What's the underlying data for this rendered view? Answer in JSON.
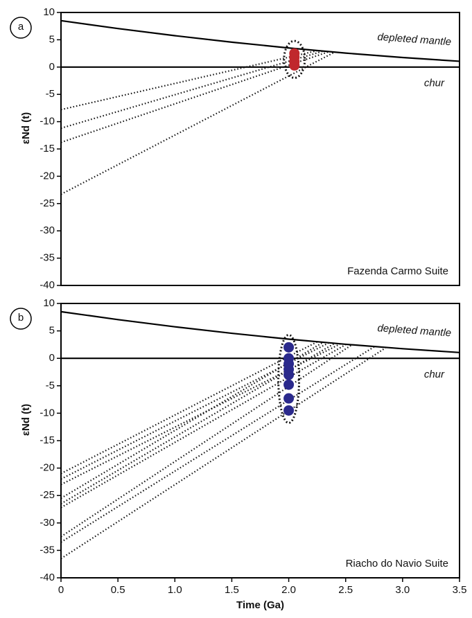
{
  "chart_data": [
    {
      "type": "line",
      "panel_label": "a",
      "y_label": "εNd (t)",
      "annotation": "Fazenda Carmo Suite",
      "xlim": [
        0,
        3.5
      ],
      "ylim": [
        -40,
        10
      ],
      "yticks": [
        10,
        5,
        0,
        -5,
        -10,
        -15,
        -20,
        -25,
        -30,
        -35,
        -40
      ],
      "series": [
        {
          "name": "depleted mantle",
          "color": "#000000",
          "x": [
            0,
            0.5,
            1.0,
            1.5,
            2.0,
            2.5,
            3.0,
            3.5
          ],
          "values": [
            8.5,
            7.06,
            5.75,
            4.56,
            3.5,
            2.56,
            1.75,
            1.06
          ]
        },
        {
          "name": "chur",
          "color": "#000000",
          "x": [
            0,
            3.5
          ],
          "values": [
            0,
            0
          ]
        }
      ],
      "samples": {
        "color": "#c0282d",
        "x": [
          2.05,
          2.05,
          2.05,
          2.05
        ],
        "values": [
          2.5,
          1.8,
          1.0,
          0.3
        ]
      },
      "model_lines": [
        {
          "x": [
            0,
            2.25
          ],
          "values": [
            -7.8,
            3.0
          ]
        },
        {
          "x": [
            0,
            2.3
          ],
          "values": [
            -11.2,
            2.9
          ]
        },
        {
          "x": [
            0,
            2.35
          ],
          "values": [
            -13.8,
            2.8
          ]
        },
        {
          "x": [
            0,
            2.4
          ],
          "values": [
            -23.3,
            2.7
          ]
        }
      ]
    },
    {
      "type": "line",
      "panel_label": "b",
      "y_label": "εNd (t)",
      "x_label": "Time (Ga)",
      "annotation": "Riacho do Navio Suite",
      "xlim": [
        0,
        3.5
      ],
      "ylim": [
        -40,
        10
      ],
      "yticks": [
        10,
        5,
        0,
        -5,
        -10,
        -15,
        -20,
        -25,
        -30,
        -35,
        -40
      ],
      "xticks": [
        0,
        0.5,
        {
          "value": 1.0,
          "label": "1.0"
        },
        1.5,
        {
          "value": 2.0,
          "label": "2.0"
        },
        2.5,
        {
          "value": 3.0,
          "label": "3.0"
        },
        3.5
      ],
      "series": [
        {
          "name": "depleted mantle",
          "color": "#000000",
          "x": [
            0,
            0.5,
            1.0,
            1.5,
            2.0,
            2.5,
            3.0,
            3.5
          ],
          "values": [
            8.5,
            7.06,
            5.75,
            4.56,
            3.5,
            2.56,
            1.75,
            1.06
          ]
        },
        {
          "name": "chur",
          "color": "#000000",
          "x": [
            0,
            3.5
          ],
          "values": [
            0,
            0
          ]
        }
      ],
      "samples": {
        "color": "#2b2a8c",
        "x": [
          2.0,
          2.0,
          2.0,
          2.0,
          2.0,
          2.0,
          2.0,
          2.0
        ],
        "values": [
          2.0,
          0,
          -1.0,
          -2.0,
          -3.0,
          -4.8,
          -7.3,
          -9.5
        ]
      },
      "model_lines": [
        {
          "x": [
            0,
            2.25
          ],
          "values": [
            -21.0,
            3.0
          ]
        },
        {
          "x": [
            0,
            2.35
          ],
          "values": [
            -22.0,
            2.8
          ]
        },
        {
          "x": [
            0,
            2.45
          ],
          "values": [
            -23.0,
            2.6
          ]
        },
        {
          "x": [
            0,
            2.3
          ],
          "values": [
            -25.5,
            2.9
          ]
        },
        {
          "x": [
            0,
            2.4
          ],
          "values": [
            -26.5,
            2.7
          ]
        },
        {
          "x": [
            0,
            2.5
          ],
          "values": [
            -27.2,
            2.5
          ]
        },
        {
          "x": [
            0,
            2.55
          ],
          "values": [
            -32.5,
            2.4
          ]
        },
        {
          "x": [
            0,
            2.75
          ],
          "values": [
            -33.5,
            2.1
          ]
        },
        {
          "x": [
            0,
            2.85
          ],
          "values": [
            -36.5,
            1.9
          ]
        }
      ]
    }
  ]
}
